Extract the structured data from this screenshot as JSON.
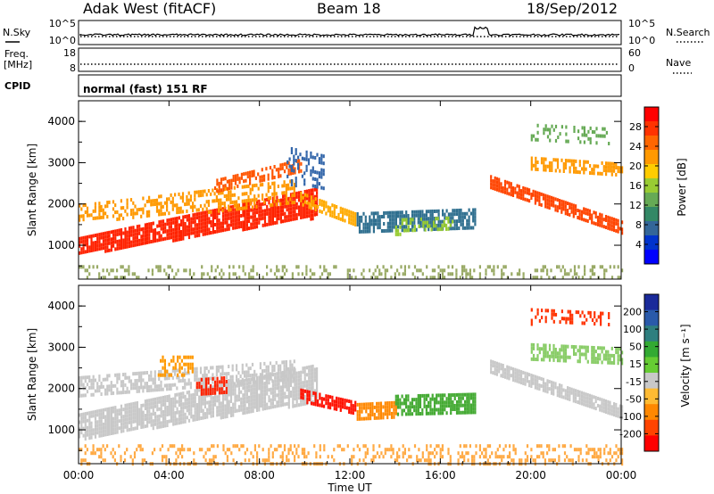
{
  "header": {
    "title": "Adak West (fitACF)",
    "beam": "Beam 18",
    "date": "18/Sep/2012"
  },
  "control_panels": {
    "nsky": {
      "label": "N.Sky",
      "ticks_left": [
        "10^5",
        "10^0"
      ],
      "ticks_right": [
        "10^5",
        "10^0"
      ],
      "right_label": "N.Search"
    },
    "freq": {
      "label_line1": "Freq.",
      "label_line2": "[MHz]",
      "ticks_left": [
        "18",
        "8"
      ],
      "ticks_right": [
        "60",
        "0"
      ],
      "right_label": "Nave"
    },
    "cpid": {
      "label": "CPID",
      "value": "normal (fast) 151 RF"
    }
  },
  "colorbars": {
    "power": {
      "label": "Power [dB]",
      "ticks": [
        "28",
        "24",
        "20",
        "16",
        "12",
        "8",
        "4"
      ],
      "colors": [
        "#ff0000",
        "#ff3300",
        "#ff6600",
        "#ff9900",
        "#ffcc00",
        "#99cc33",
        "#66aa55",
        "#338866",
        "#336699",
        "#0033cc",
        "#0000ff"
      ]
    },
    "velocity": {
      "label": "Velocity [m s⁻¹]",
      "ticks": [
        "200",
        "100",
        "50",
        "15",
        "-15",
        "-50",
        "-100",
        "-200"
      ],
      "colors": [
        "#1a2a9a",
        "#2a5aaa",
        "#2f7f7f",
        "#33aa33",
        "#66cc33",
        "#c8c8c8",
        "#ffbb33",
        "#ff8800",
        "#ff4400",
        "#ff0000"
      ]
    }
  },
  "chart_data": [
    {
      "type": "heatmap",
      "name": "power",
      "xlabel": "Time UT",
      "ylabel": "Slant Range [km]",
      "x_ticks": [
        "00:00",
        "04:00",
        "08:00",
        "12:00",
        "16:00",
        "20:00",
        "00:00"
      ],
      "y_ticks": [
        "1000",
        "2000",
        "3000",
        "4000"
      ],
      "x_range_hours": [
        0,
        24
      ],
      "y_range_km": [
        180,
        4500
      ],
      "bands": [
        {
          "t": [
            0,
            10.5
          ],
          "r0": [
            800,
            1700
          ],
          "r1": [
            1200,
            2400
          ],
          "color": "#ff2200",
          "density": 0.85
        },
        {
          "t": [
            0,
            9.5
          ],
          "r0": [
            1600,
            2000
          ],
          "r1": [
            2000,
            2600
          ],
          "color": "#ff9900",
          "density": 0.45
        },
        {
          "t": [
            6,
            9.8
          ],
          "r0": [
            2300,
            2800
          ],
          "r1": [
            2600,
            3100
          ],
          "color": "#ff5500",
          "density": 0.5
        },
        {
          "t": [
            9.8,
            12.2
          ],
          "r0": [
            2000,
            1500
          ],
          "r1": [
            2300,
            1800
          ],
          "color": "#ffaa00",
          "density": 0.7
        },
        {
          "t": [
            12.3,
            17.5
          ],
          "r0": [
            1300,
            1400
          ],
          "r1": [
            1800,
            1900
          ],
          "color": "#2f6f8f",
          "density": 0.75
        },
        {
          "t": [
            14,
            16.5
          ],
          "r0": [
            1300,
            1400
          ],
          "r1": [
            1650,
            1700
          ],
          "color": "#99cc33",
          "density": 0.45
        },
        {
          "t": [
            18.2,
            24
          ],
          "r0": [
            2400,
            1300
          ],
          "r1": [
            2700,
            1600
          ],
          "color": "#ff4400",
          "density": 0.85
        },
        {
          "t": [
            20,
            24
          ],
          "r0": [
            2850,
            2700
          ],
          "r1": [
            3150,
            3000
          ],
          "color": "#ff9900",
          "density": 0.6
        },
        {
          "t": [
            20,
            23.5
          ],
          "r0": [
            3600,
            3500
          ],
          "r1": [
            3950,
            3850
          ],
          "color": "#66aa55",
          "density": 0.3
        },
        {
          "t": [
            9.2,
            10.8
          ],
          "r0": [
            2500,
            2400
          ],
          "r1": [
            3400,
            3200
          ],
          "color": "#3366aa",
          "density": 0.35
        },
        {
          "t": [
            0,
            24
          ],
          "r0": [
            200,
            200
          ],
          "r1": [
            520,
            520
          ],
          "color": "#99aa66",
          "density": 0.25
        }
      ]
    },
    {
      "type": "heatmap",
      "name": "velocity",
      "xlabel": "Time UT",
      "ylabel": "Slant Range [km]",
      "x_ticks": [
        "00:00",
        "04:00",
        "08:00",
        "12:00",
        "16:00",
        "20:00",
        "00:00"
      ],
      "y_ticks": [
        "1000",
        "2000",
        "3000",
        "4000"
      ],
      "x_range_hours": [
        0,
        24
      ],
      "y_range_km": [
        180,
        4500
      ],
      "bands": [
        {
          "t": [
            0,
            10.5
          ],
          "r0": [
            800,
            1700
          ],
          "r1": [
            1400,
            2600
          ],
          "color": "#c8c8c8",
          "density": 0.85
        },
        {
          "t": [
            0,
            9.5
          ],
          "r0": [
            1800,
            2200
          ],
          "r1": [
            2300,
            2700
          ],
          "color": "#c8c8c8",
          "density": 0.55
        },
        {
          "t": [
            5.2,
            6.5
          ],
          "r0": [
            1850,
            1900
          ],
          "r1": [
            2250,
            2300
          ],
          "color": "#ff2200",
          "density": 0.7
        },
        {
          "t": [
            3.5,
            5
          ],
          "r0": [
            2300,
            2300
          ],
          "r1": [
            2800,
            2800
          ],
          "color": "#ff9900",
          "density": 0.4
        },
        {
          "t": [
            9.8,
            12.2
          ],
          "r0": [
            1700,
            1400
          ],
          "r1": [
            2000,
            1700
          ],
          "color": "#ff1100",
          "density": 0.8
        },
        {
          "t": [
            12.3,
            14
          ],
          "r0": [
            1300,
            1350
          ],
          "r1": [
            1650,
            1700
          ],
          "color": "#ff8800",
          "density": 0.8
        },
        {
          "t": [
            14,
            17.5
          ],
          "r0": [
            1400,
            1450
          ],
          "r1": [
            1850,
            1900
          ],
          "color": "#44aa33",
          "density": 0.75
        },
        {
          "t": [
            18.2,
            24
          ],
          "r0": [
            2400,
            1300
          ],
          "r1": [
            2700,
            1600
          ],
          "color": "#c8c8c8",
          "density": 0.85
        },
        {
          "t": [
            20,
            24
          ],
          "r0": [
            2750,
            2650
          ],
          "r1": [
            3100,
            3000
          ],
          "color": "#88cc66",
          "density": 0.6
        },
        {
          "t": [
            20,
            23.5
          ],
          "r0": [
            3600,
            3550
          ],
          "r1": [
            3950,
            3850
          ],
          "color": "#ff3300",
          "density": 0.35
        },
        {
          "t": [
            0,
            24
          ],
          "r0": [
            200,
            200
          ],
          "r1": [
            650,
            650
          ],
          "color": "#ffaa44",
          "density": 0.3
        }
      ]
    }
  ]
}
